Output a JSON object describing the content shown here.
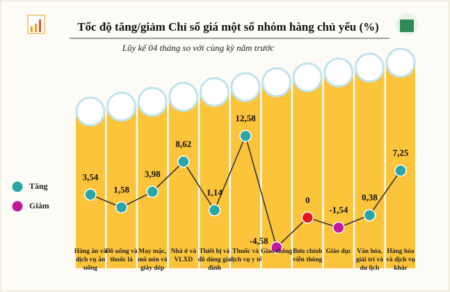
{
  "chart_data": {
    "type": "line",
    "title": "Tốc độ tăng/giảm Chỉ số giá một số nhóm hàng chủ yếu (%)",
    "subtitle": "Lũy kế 04 tháng so với cùng kỳ năm trước",
    "categories": [
      "Hàng ăn và dịch vụ ăn uống",
      "Đồ uống và thuốc lá",
      "May mặc, mũ nón và giày dép",
      "Nhà ở và VLXD",
      "Thiết bị và đồ dùng gia đình",
      "Thuốc và dịch vụ y tế",
      "Giao thông",
      "Bưu chính viễn thông",
      "Giáo dục",
      "Văn hóa, giải trí và du lịch",
      "Hàng hóa và dịch vụ khác"
    ],
    "values": [
      3.54,
      1.58,
      3.98,
      8.62,
      1.14,
      12.58,
      -4.58,
      0,
      -1.54,
      0.38,
      7.25
    ],
    "value_labels": [
      "3,54",
      "1,58",
      "3,98",
      "8,62",
      "1,14",
      "12,58",
      "-4,58",
      "0",
      "-1,54",
      "0,38",
      "7,25"
    ],
    "legend": [
      {
        "name": "Tăng",
        "color": "#2aa6a6"
      },
      {
        "name": "Giảm",
        "color": "#c3189d"
      }
    ],
    "zero_color": "#e3161c",
    "column_color": "#fbc43a",
    "line_color": "#333333"
  }
}
